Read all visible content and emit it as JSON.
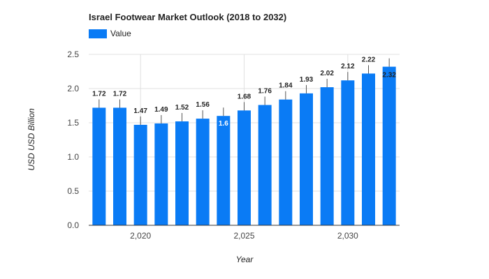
{
  "chart_data": {
    "type": "bar",
    "title": "Israel Footwear Market Outlook (2018 to 2032)",
    "xlabel": "Year",
    "ylabel": "USD USD Billion",
    "legend": {
      "position": "top-left",
      "entries": [
        "Value"
      ]
    },
    "x": [
      2018,
      2019,
      2020,
      2021,
      2022,
      2023,
      2024,
      2025,
      2026,
      2027,
      2028,
      2029,
      2030,
      2031,
      2032
    ],
    "series": [
      {
        "name": "Value",
        "color": "#0a7bf5",
        "values": [
          1.72,
          1.72,
          1.47,
          1.49,
          1.52,
          1.56,
          1.6,
          1.68,
          1.76,
          1.84,
          1.93,
          2.02,
          2.12,
          2.22,
          2.32
        ]
      }
    ],
    "data_labels": [
      "1.72",
      "1.72",
      "1.47",
      "1.49",
      "1.52",
      "1.56",
      "1.6",
      "1.68",
      "1.76",
      "1.84",
      "1.93",
      "2.02",
      "2.12",
      "2.22",
      "2.32"
    ],
    "ylim": [
      0,
      2.5
    ],
    "yticks": [
      "0.0",
      "0.5",
      "1.0",
      "1.5",
      "2.0",
      "2.5"
    ],
    "xticks": [
      {
        "value": 2020,
        "label": "2,020"
      },
      {
        "value": 2025,
        "label": "2,025"
      },
      {
        "value": 2030,
        "label": "2,030"
      }
    ],
    "grid": true,
    "error_bars": true
  }
}
